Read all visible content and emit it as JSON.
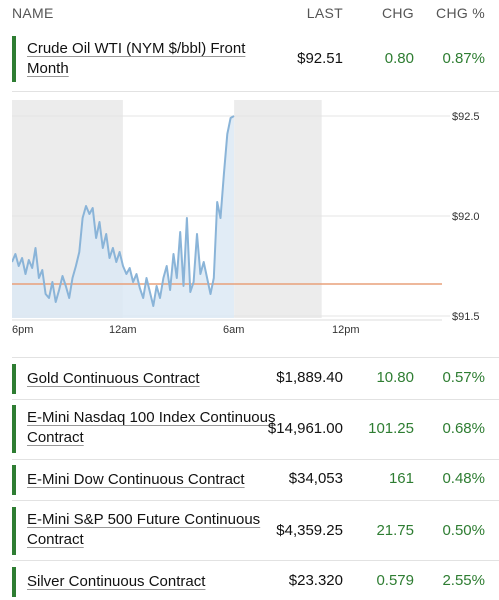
{
  "header": {
    "name": "NAME",
    "last": "LAST",
    "chg": "CHG",
    "pct": "CHG %"
  },
  "featured": {
    "name_line1": "Crude Oil WTI (NYM $/bbl) Front",
    "name_line2": "Month",
    "last": "$92.51",
    "chg": "0.80",
    "pct": "0.87%"
  },
  "chart_data": {
    "type": "area",
    "x_ticks": [
      "6pm",
      "12am",
      "6am",
      "12pm"
    ],
    "y_ticks": [
      "$92.5",
      "$92.0",
      "$91.5"
    ],
    "ylim": [
      91.5,
      92.55
    ],
    "reference_line": 91.67,
    "series": [
      {
        "values": [
          91.78,
          91.82,
          91.76,
          91.8,
          91.72,
          91.79,
          91.75,
          91.85,
          91.7,
          91.74,
          91.62,
          91.6,
          91.68,
          91.58,
          91.64,
          91.71,
          91.66,
          91.6,
          91.7,
          91.76,
          91.83,
          92.0,
          92.06,
          92.02,
          92.05,
          91.9,
          91.98,
          91.85,
          91.92,
          91.8,
          91.85,
          91.78,
          91.83,
          91.76,
          91.72,
          91.75,
          91.68,
          91.72,
          91.65,
          91.6,
          91.7,
          91.63,
          91.56,
          91.66,
          91.6,
          91.7,
          91.76,
          91.64,
          91.82,
          91.7,
          91.93,
          91.66,
          92.0,
          91.63,
          91.68,
          91.92,
          91.72,
          91.78,
          91.7,
          91.62,
          91.7,
          92.08,
          92.0,
          92.22,
          92.42,
          92.5,
          92.51
        ]
      }
    ],
    "shaded_ranges": [
      [
        0,
        0.333
      ],
      [
        0.667,
        0.93
      ]
    ],
    "colors": {
      "line": "#8ab4d8",
      "fill": "#dce9f4",
      "reference": "#e8a07a",
      "shade": "#ececec"
    }
  },
  "rows": [
    {
      "name_line1": "Gold Continuous Contract",
      "name_line2": "",
      "last": "$1,889.40",
      "chg": "10.80",
      "pct": "0.57%"
    },
    {
      "name_line1": "E-Mini Nasdaq 100 Index Continuous",
      "name_line2": "Contract",
      "last": "$14,961.00",
      "chg": "101.25",
      "pct": "0.68%"
    },
    {
      "name_line1": "E-Mini Dow Continuous Contract",
      "name_line2": "",
      "last": "$34,053",
      "chg": "161",
      "pct": "0.48%"
    },
    {
      "name_line1": "E-Mini S&P 500 Future Continuous",
      "name_line2": "Contract",
      "last": "$4,359.25",
      "chg": "21.75",
      "pct": "0.50%"
    },
    {
      "name_line1": "Silver Continuous Contract",
      "name_line2": "",
      "last": "$23.320",
      "chg": "0.579",
      "pct": "2.55%"
    }
  ]
}
